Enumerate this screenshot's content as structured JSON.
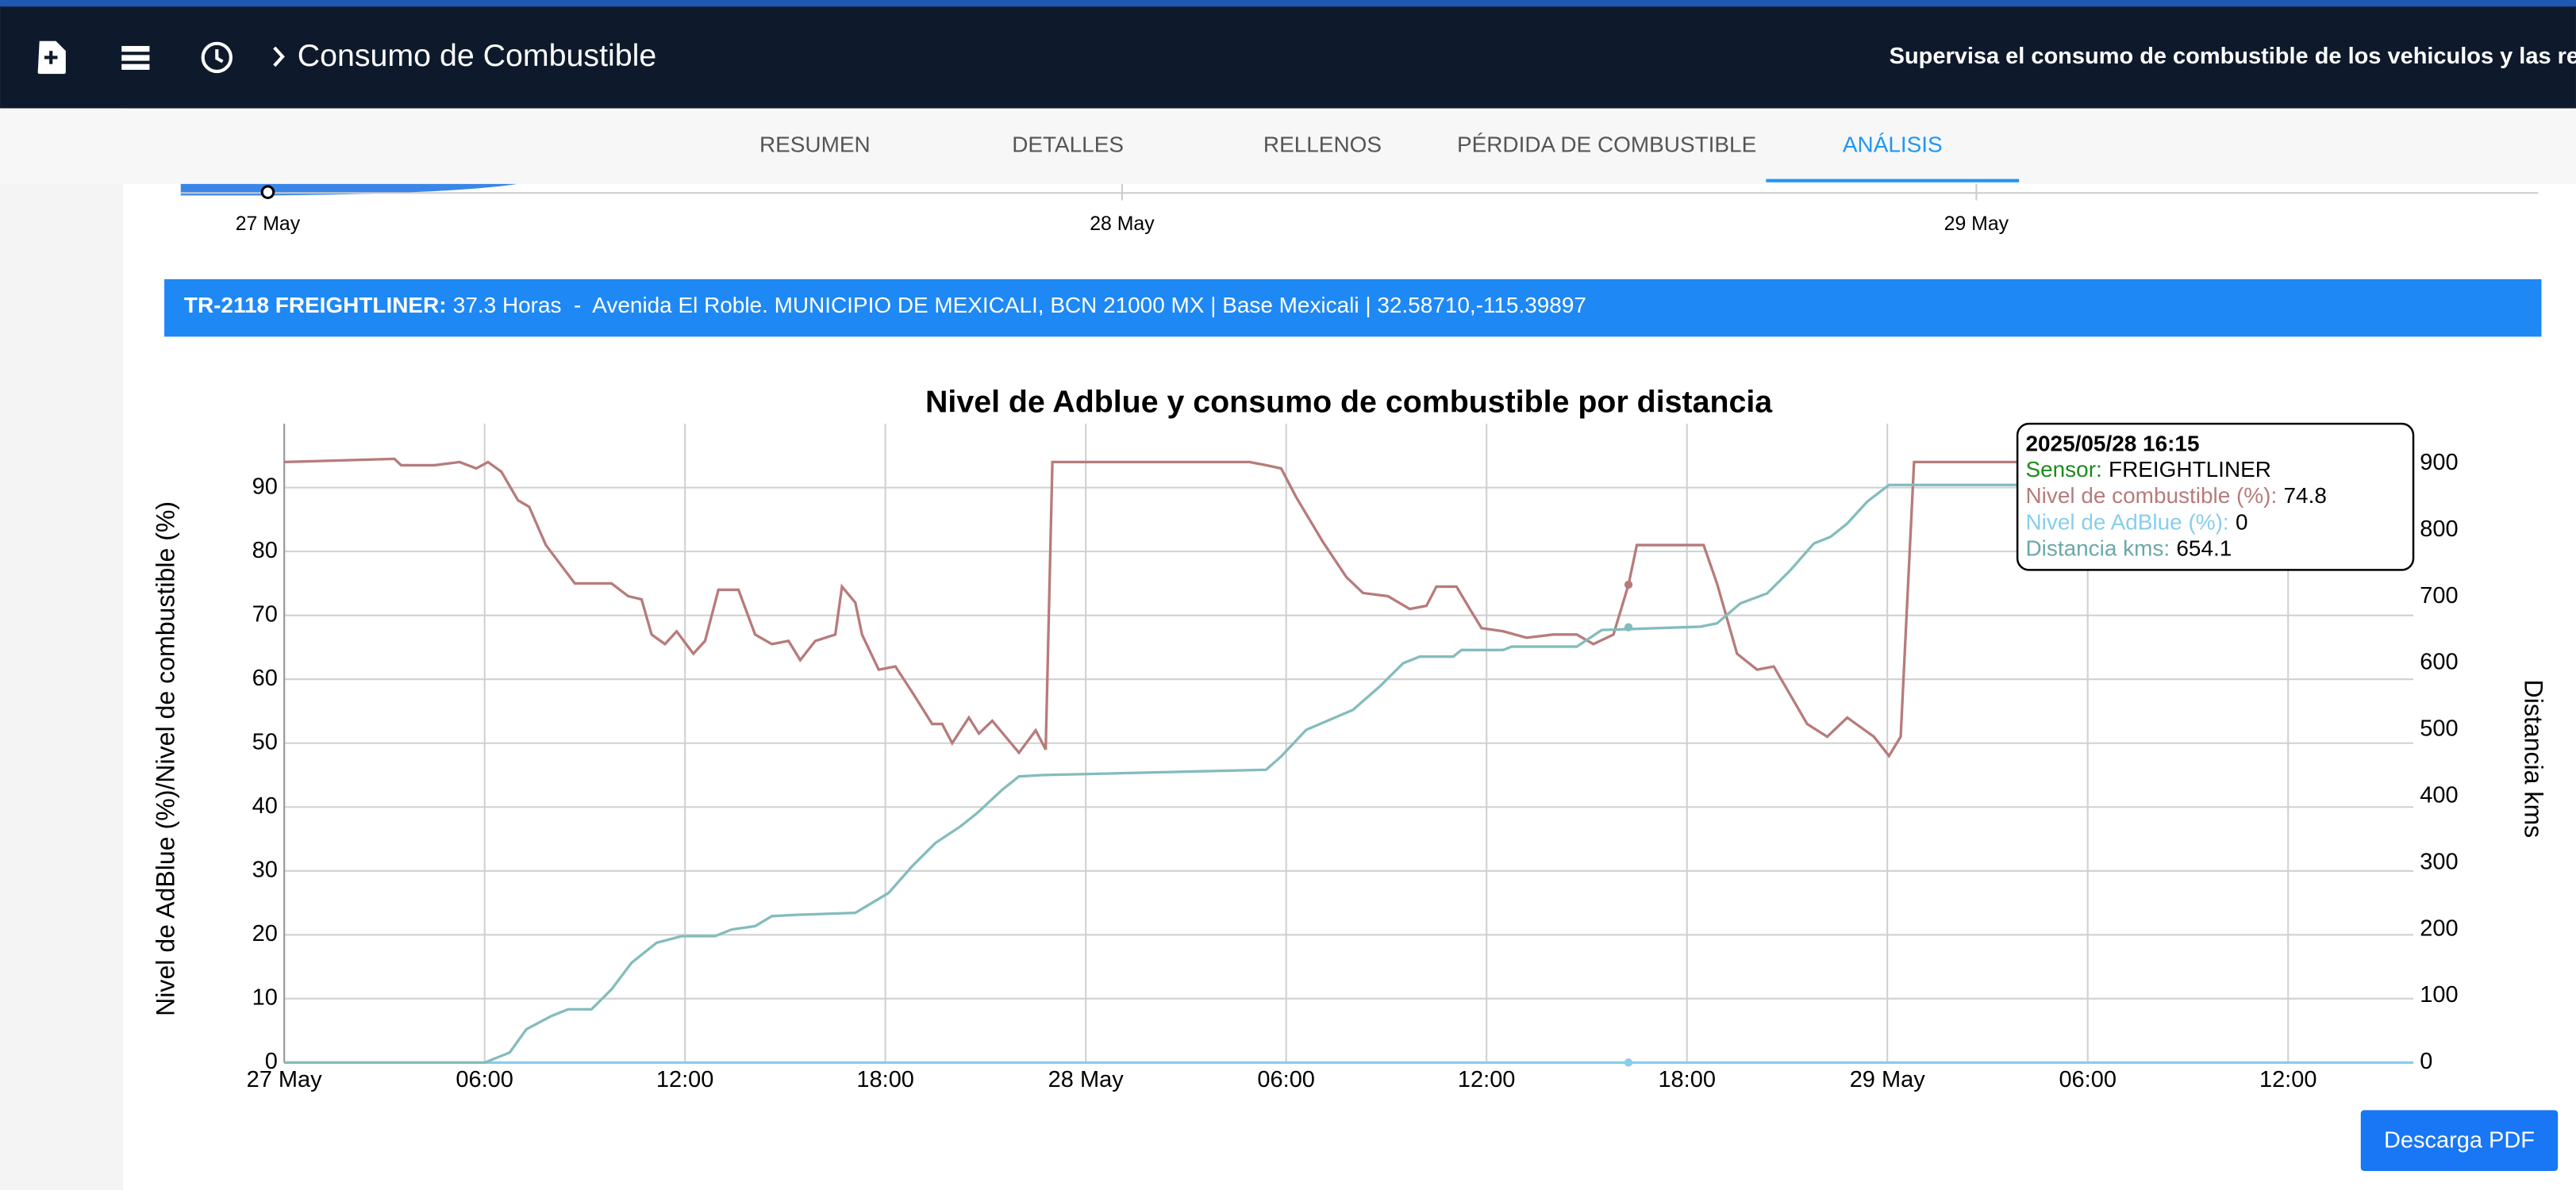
{
  "header": {
    "title": "Consumo de Combustible",
    "subtitle": "Supervisa el consumo de combustible de los vehiculos y las recargas"
  },
  "tabs": [
    "RESUMEN",
    "DETALLES",
    "RELLENOS",
    "PÉRDIDA DE COMBUSTIBLE",
    "ANÁLISIS"
  ],
  "timeline": {
    "labels": [
      "27 May",
      "28 May",
      "29 May"
    ]
  },
  "banner": {
    "label": "TR-2118 FREIGHTLINER:",
    "text": "37.3 Horas  -  Avenida El Roble. MUNICIPIO DE MEXICALI, BCN 21000 MX | Base Mexicali | 32.58710,-115.39897"
  },
  "chart_data": {
    "type": "line",
    "title": "Nivel de Adblue y consumo de combustible por distancia",
    "ylabel": "Nivel de AdBlue (%)/Nivel de combustible (%)",
    "y2label": "Distancia kms",
    "xlim": [
      "2025-05-27 00:00",
      "2025-05-29 15:45"
    ],
    "xticks": [
      {
        "value": "2025-05-27 00:00",
        "label": "27 May"
      },
      {
        "value": "2025-05-27 06:00",
        "label": "06:00"
      },
      {
        "value": "2025-05-27 12:00",
        "label": "12:00"
      },
      {
        "value": "2025-05-27 18:00",
        "label": "18:00"
      },
      {
        "value": "2025-05-28 00:00",
        "label": "28 May"
      },
      {
        "value": "2025-05-28 06:00",
        "label": "06:00"
      },
      {
        "value": "2025-05-28 12:00",
        "label": "12:00"
      },
      {
        "value": "2025-05-28 18:00",
        "label": "18:00"
      },
      {
        "value": "2025-05-29 00:00",
        "label": "29 May"
      },
      {
        "value": "2025-05-29 06:00",
        "label": "06:00"
      },
      {
        "value": "2025-05-29 12:00",
        "label": "12:00"
      }
    ],
    "ylim": [
      0,
      100
    ],
    "yticks": [
      0,
      10,
      20,
      30,
      40,
      50,
      60,
      70,
      80,
      90
    ],
    "y2lim": [
      0,
      960
    ],
    "y2ticks": [
      0,
      100,
      200,
      300,
      400,
      500,
      600,
      700,
      800,
      900
    ],
    "grid": true,
    "series": [
      {
        "name": "Nivel de combustible (%)",
        "color": "#b77b7b",
        "axis": "y",
        "x": [
          "2025-05-27 00:00",
          "2025-05-27 03:18",
          "2025-05-27 03:30",
          "2025-05-27 04:30",
          "2025-05-27 05:15",
          "2025-05-27 05:45",
          "2025-05-27 06:06",
          "2025-05-27 06:30",
          "2025-05-27 07:00",
          "2025-05-27 07:20",
          "2025-05-27 07:50",
          "2025-05-27 08:42",
          "2025-05-27 09:48",
          "2025-05-27 10:18",
          "2025-05-27 10:42",
          "2025-05-27 11:00",
          "2025-05-27 11:24",
          "2025-05-27 11:45",
          "2025-05-27 12:15",
          "2025-05-27 12:36",
          "2025-05-27 13:00",
          "2025-05-27 13:36",
          "2025-05-27 14:06",
          "2025-05-27 14:36",
          "2025-05-27 15:06",
          "2025-05-27 15:27",
          "2025-05-27 15:54",
          "2025-05-27 16:30",
          "2025-05-27 16:42",
          "2025-05-27 17:06",
          "2025-05-27 17:18",
          "2025-05-27 17:48",
          "2025-05-27 18:18",
          "2025-05-27 18:48",
          "2025-05-27 19:24",
          "2025-05-27 19:42",
          "2025-05-27 20:00",
          "2025-05-27 20:30",
          "2025-05-27 20:48",
          "2025-05-27 21:12",
          "2025-05-27 21:36",
          "2025-05-27 22:00",
          "2025-05-27 22:30",
          "2025-05-27 22:48",
          "2025-05-27 23:00",
          "2025-05-28 04:54",
          "2025-05-28 05:24",
          "2025-05-28 05:51",
          "2025-05-28 06:18",
          "2025-05-28 07:06",
          "2025-05-28 07:48",
          "2025-05-28 08:18",
          "2025-05-28 09:03",
          "2025-05-28 09:42",
          "2025-05-28 10:12",
          "2025-05-28 10:30",
          "2025-05-28 11:06",
          "2025-05-28 11:30",
          "2025-05-28 11:51",
          "2025-05-28 12:30",
          "2025-05-28 13:12",
          "2025-05-28 14:00",
          "2025-05-28 14:42",
          "2025-05-28 15:12",
          "2025-05-28 15:48",
          "2025-05-28 16:15",
          "2025-05-28 16:30",
          "2025-05-28 18:30",
          "2025-05-28 18:54",
          "2025-05-28 19:30",
          "2025-05-28 20:06",
          "2025-05-28 20:36",
          "2025-05-28 21:06",
          "2025-05-28 21:36",
          "2025-05-28 22:12",
          "2025-05-28 22:48",
          "2025-05-28 23:36",
          "2025-05-29 00:03",
          "2025-05-29 00:24",
          "2025-05-29 00:48",
          "2025-05-29 04:00"
        ],
        "values": [
          94,
          94.5,
          93.5,
          93.5,
          94,
          93,
          94,
          92.5,
          88,
          87,
          81,
          75,
          75,
          73,
          72.5,
          67,
          65.5,
          67.5,
          64,
          66,
          74,
          74,
          67,
          65.5,
          66,
          63,
          66,
          67,
          74.5,
          72,
          67,
          61.5,
          62,
          58,
          53,
          53,
          50,
          54,
          51.5,
          53.5,
          51,
          48.5,
          52,
          49,
          94,
          94,
          93.5,
          93,
          88.5,
          81.5,
          76,
          73.5,
          73,
          71,
          71.5,
          74.5,
          74.5,
          71,
          68,
          67.5,
          66.5,
          67,
          67,
          65.5,
          67,
          74.8,
          81,
          81,
          75,
          64,
          61.5,
          62,
          57.5,
          53,
          51,
          54,
          51,
          48,
          51,
          94,
          94
        ]
      },
      {
        "name": "Nivel de AdBlue (%)",
        "color": "#87ceeb",
        "axis": "y",
        "x": [
          "2025-05-27 00:00",
          "2025-05-29 15:45"
        ],
        "values": [
          0,
          0
        ]
      },
      {
        "name": "Distancia kms",
        "color": "#84bcbc",
        "axis": "y2",
        "x": [
          "2025-05-27 00:00",
          "2025-05-27 06:00",
          "2025-05-27 06:45",
          "2025-05-27 07:15",
          "2025-05-27 08:00",
          "2025-05-27 08:30",
          "2025-05-27 09:12",
          "2025-05-27 09:48",
          "2025-05-27 10:24",
          "2025-05-27 11:09",
          "2025-05-27 11:54",
          "2025-05-27 12:54",
          "2025-05-27 13:24",
          "2025-05-27 14:06",
          "2025-05-27 14:36",
          "2025-05-27 15:21",
          "2025-05-27 17:06",
          "2025-05-27 17:36",
          "2025-05-27 18:06",
          "2025-05-27 18:48",
          "2025-05-27 19:30",
          "2025-05-27 20:15",
          "2025-05-27 20:45",
          "2025-05-27 21:30",
          "2025-05-27 22:00",
          "2025-05-27 22:42",
          "2025-05-28 05:24",
          "2025-05-28 05:51",
          "2025-05-28 06:36",
          "2025-05-28 07:18",
          "2025-05-28 08:00",
          "2025-05-28 08:48",
          "2025-05-28 09:30",
          "2025-05-28 10:00",
          "2025-05-28 11:00",
          "2025-05-28 11:15",
          "2025-05-28 12:30",
          "2025-05-28 12:45",
          "2025-05-28 14:42",
          "2025-05-28 15:27",
          "2025-05-28 18:24",
          "2025-05-28 18:54",
          "2025-05-28 19:36",
          "2025-05-28 20:24",
          "2025-05-28 21:06",
          "2025-05-28 21:48",
          "2025-05-28 22:18",
          "2025-05-28 22:48",
          "2025-05-28 23:24",
          "2025-05-29 00:03",
          "2025-05-29 04:00"
        ],
        "values": [
          0,
          0,
          15,
          50,
          70,
          80,
          80,
          110,
          150,
          180,
          190,
          190,
          200,
          205,
          220,
          222,
          225,
          240,
          255,
          295,
          330,
          355,
          375,
          410,
          430,
          432,
          440,
          460,
          500,
          515,
          530,
          565,
          600,
          610,
          610,
          620,
          620,
          625,
          625,
          650,
          655,
          660,
          690,
          705,
          740,
          780,
          790,
          810,
          843,
          868,
          868
        ]
      }
    ]
  },
  "tooltip": {
    "title": "2025/05/28 16:15",
    "sensor_label": "Sensor:",
    "sensor": "FREIGHTLINER",
    "fuel_label": "Nivel de combustible (%):",
    "fuel": 74.8,
    "adblue_label": "Nivel de AdBlue (%):",
    "adblue": 0,
    "distance_label": "Distancia kms:",
    "distance": 654.1
  },
  "button": "Descarga PDF"
}
